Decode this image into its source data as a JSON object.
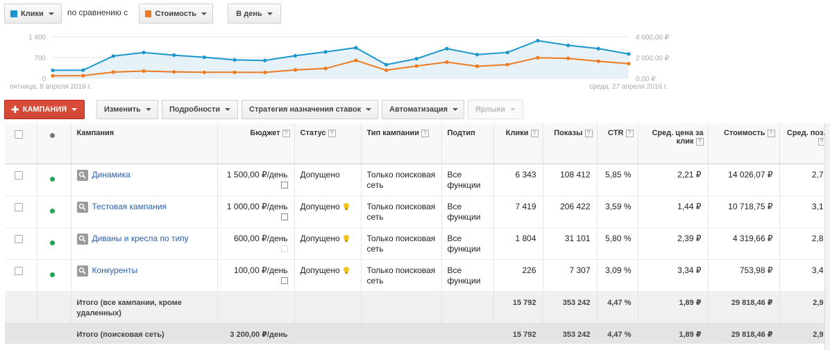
{
  "controls": {
    "metric1": {
      "label": "Клики",
      "color": "#1996cc"
    },
    "compare_text": "по сравнению с",
    "metric2": {
      "label": "Стоимость",
      "color": "#ed7a1e"
    },
    "period": "В день"
  },
  "chart_data": {
    "type": "line",
    "x_start_label": "пятница, 8 апреля 2016 г.",
    "x_end_label": "среда, 27 апреля 2016 г.",
    "y_left_ticks": [
      "1 400",
      "700",
      "0"
    ],
    "y_right_ticks": [
      "4 000,00 ₽",
      "2 000,00 ₽",
      "0,00 ₽"
    ],
    "ylim_left": [
      0,
      1400
    ],
    "ylim_right": [
      0,
      4000
    ],
    "series": [
      {
        "name": "Клики",
        "axis": "left",
        "color": "#1996cc",
        "values": [
          270,
          275,
          750,
          870,
          780,
          710,
          620,
          600,
          760,
          890,
          1030,
          460,
          660,
          1000,
          800,
          870,
          1270,
          1110,
          1000,
          820
        ]
      },
      {
        "name": "Стоимость",
        "axis": "right",
        "color": "#ed7a1e",
        "values": [
          240,
          260,
          600,
          700,
          620,
          580,
          580,
          570,
          810,
          950,
          1720,
          780,
          1180,
          1560,
          1160,
          1320,
          1980,
          1920,
          1640,
          1410
        ]
      }
    ]
  },
  "toolbar": {
    "campaign_label": "КАМПАНИЯ",
    "edit_label": "Изменить",
    "details_label": "Подробности",
    "bidding_label": "Стратегия назначения ставок",
    "automate_label": "Автоматизация",
    "labels_label": "Ярлыки"
  },
  "table": {
    "headers": {
      "campaign": "Кампания",
      "budget": "Бюджет",
      "status": "Статус",
      "type": "Тип кампании",
      "subtype": "Подтип",
      "clicks": "Клики",
      "impr": "Показы",
      "ctr": "CTR",
      "cpc": "Сред. цена за клик",
      "cost": "Стоимость",
      "pos": "Сред. поз."
    },
    "help_mark": "?",
    "rows": [
      {
        "name": "Динамика",
        "budget": "1 500,00 ₽/день",
        "status": "Допущено",
        "type": "Только поисковая сеть",
        "subtype": "Все функции",
        "clicks": "6 343",
        "impr": "108 412",
        "ctr": "5,85 %",
        "cpc": "2,21 ₽",
        "cost": "14 026,07 ₽",
        "pos": "2,7"
      },
      {
        "name": "Тестовая кампания",
        "budget": "1 000,00 ₽/день",
        "status": "Допущено",
        "type": "Только поисковая сеть",
        "subtype": "Все функции",
        "clicks": "7 419",
        "impr": "206 422",
        "ctr": "3,59 %",
        "cpc": "1,44 ₽",
        "cost": "10 718,75 ₽",
        "pos": "3,1"
      },
      {
        "name": "Диваны и кресла по типу",
        "budget": "600,00 ₽/день",
        "status": "Допущено",
        "type": "Только поисковая сеть",
        "subtype": "Все функции",
        "clicks": "1 804",
        "impr": "31 101",
        "ctr": "5,80 %",
        "cpc": "2,39 ₽",
        "cost": "4 319,66 ₽",
        "pos": "2,8"
      },
      {
        "name": "Конкуренты",
        "budget": "100,00 ₽/день",
        "status": "Допущено",
        "type": "Только поисковая сеть",
        "subtype": "Все функции",
        "clicks": "226",
        "impr": "7 307",
        "ctr": "3,09 %",
        "cpc": "3,34 ₽",
        "cost": "753,98 ₽",
        "pos": "3,4"
      }
    ],
    "total_all": {
      "label": "Итого (все кампании, кроме удаленных)",
      "clicks": "15 792",
      "impr": "353 242",
      "ctr": "4,47 %",
      "cpc": "1,89 ₽",
      "cost": "29 818,46 ₽",
      "pos": "2,9"
    },
    "total_search": {
      "label": "Итого (поисковая сеть)",
      "budget": "3 200,00 ₽/день",
      "clicks": "15 792",
      "impr": "353 242",
      "ctr": "4,47 %",
      "cpc": "1,89 ₽",
      "cost": "29 818,46 ₽",
      "pos": "2,9"
    }
  }
}
